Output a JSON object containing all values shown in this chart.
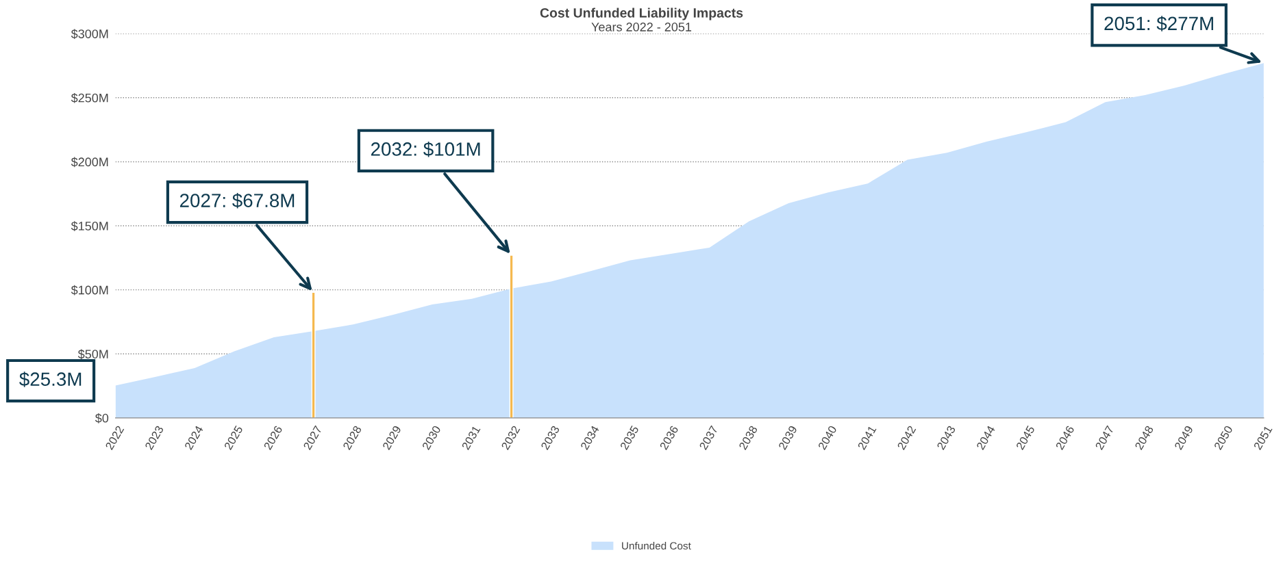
{
  "chart_data": {
    "type": "area",
    "title": "Cost Unfunded Liability Impacts",
    "subtitle": "Years 2022 - 2051",
    "categories": [
      "2022",
      "2023",
      "2024",
      "2025",
      "2026",
      "2027",
      "2028",
      "2029",
      "2030",
      "2031",
      "2032",
      "2033",
      "2034",
      "2035",
      "2036",
      "2037",
      "2038",
      "2039",
      "2040",
      "2041",
      "2042",
      "2043",
      "2044",
      "2045",
      "2046",
      "2047",
      "2048",
      "2049",
      "2050",
      "2051"
    ],
    "series": [
      {
        "name": "Unfunded Cost",
        "color": "#c8e1fc",
        "values": [
          25.3,
          32,
          39,
          52,
          63,
          67.8,
          73,
          80.5,
          88.6,
          93,
          101,
          106.5,
          114.6,
          123,
          128,
          133,
          153.5,
          167.6,
          176,
          183,
          201.6,
          207,
          215.7,
          223,
          231,
          246.5,
          252,
          259.5,
          268.6,
          277
        ]
      },
      {
        "type": "bar",
        "color": "#f5b94f",
        "values": [
          null,
          null,
          null,
          null,
          null,
          98,
          null,
          null,
          null,
          null,
          127,
          null,
          null,
          null,
          null,
          null,
          null,
          null,
          null,
          null,
          null,
          null,
          null,
          null,
          null,
          null,
          null,
          null,
          null,
          null
        ]
      }
    ],
    "ylim": [
      0,
      300
    ],
    "yticks": [
      {
        "value": 0,
        "label": "$0"
      },
      {
        "value": 50,
        "label": "$50M"
      },
      {
        "value": 100,
        "label": "$100M"
      },
      {
        "value": 150,
        "label": "$150M"
      },
      {
        "value": 200,
        "label": "$200M"
      },
      {
        "value": 250,
        "label": "$250M"
      },
      {
        "value": 300,
        "label": "$300M"
      }
    ],
    "grid": "y",
    "legend": "bottom",
    "annotations": [
      {
        "text": "$25.3M",
        "x": "2022",
        "y": 25.3
      },
      {
        "text": "2027: $67.8M",
        "x": "2027",
        "y": 98
      },
      {
        "text": "2032: $101M",
        "x": "2032",
        "y": 127
      },
      {
        "text": "2051: $277M",
        "x": "2051",
        "y": 277
      }
    ]
  }
}
